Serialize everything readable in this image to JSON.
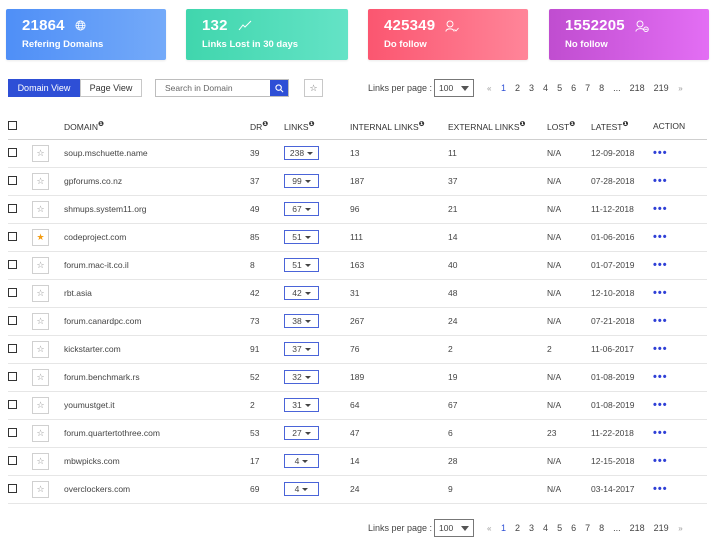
{
  "cards": [
    {
      "value": "21864",
      "label": "Refering Domains",
      "icon": "globe-icon"
    },
    {
      "value": "132",
      "label": "Links Lost in 30 days",
      "icon": "trend-line-icon"
    },
    {
      "value": "425349",
      "label": "Do follow",
      "icon": "user-check-icon"
    },
    {
      "value": "1552205",
      "label": "No follow",
      "icon": "user-block-icon"
    }
  ],
  "toolbar": {
    "domain_view": "Domain View",
    "page_view": "Page View",
    "search_placeholder": "Search in Domain",
    "favorite_icon": "☆"
  },
  "pagination": {
    "per_page_label": "Links per page :",
    "per_page_value": "100",
    "prev": "«",
    "next": "»",
    "pages": [
      "1",
      "2",
      "3",
      "4",
      "5",
      "6",
      "7",
      "8",
      "...",
      "218",
      "219"
    ],
    "active_page": "1"
  },
  "table": {
    "columns": {
      "domain": "DOMAIN",
      "dr": "DR",
      "links": "LINKS",
      "internal": "INTERNAL LINKS",
      "external": "EXTERNAL LINKS",
      "lost": "LOST",
      "latest": "LATEST",
      "action": "ACTION"
    },
    "info_icon": "❶",
    "action_icon": "•••",
    "rows": [
      {
        "domain": "soup.mschuette.name",
        "dr": "39",
        "links": "238",
        "internal": "13",
        "external": "11",
        "lost": "N/A",
        "latest": "12-09-2018",
        "starred": false
      },
      {
        "domain": "gpforums.co.nz",
        "dr": "37",
        "links": "99",
        "internal": "187",
        "external": "37",
        "lost": "N/A",
        "latest": "07-28-2018",
        "starred": false
      },
      {
        "domain": "shmups.system11.org",
        "dr": "49",
        "links": "67",
        "internal": "96",
        "external": "21",
        "lost": "N/A",
        "latest": "11-12-2018",
        "starred": false
      },
      {
        "domain": "codeproject.com",
        "dr": "85",
        "links": "51",
        "internal": "111",
        "external": "14",
        "lost": "N/A",
        "latest": "01-06-2016",
        "starred": true
      },
      {
        "domain": "forum.mac-it.co.il",
        "dr": "8",
        "links": "51",
        "internal": "163",
        "external": "40",
        "lost": "N/A",
        "latest": "01-07-2019",
        "starred": false
      },
      {
        "domain": "rbt.asia",
        "dr": "42",
        "links": "42",
        "internal": "31",
        "external": "48",
        "lost": "N/A",
        "latest": "12-10-2018",
        "starred": false
      },
      {
        "domain": "forum.canardpc.com",
        "dr": "73",
        "links": "38",
        "internal": "267",
        "external": "24",
        "lost": "N/A",
        "latest": "07-21-2018",
        "starred": false
      },
      {
        "domain": "kickstarter.com",
        "dr": "91",
        "links": "37",
        "internal": "76",
        "external": "2",
        "lost": "2",
        "latest": "11-06-2017",
        "starred": false
      },
      {
        "domain": "forum.benchmark.rs",
        "dr": "52",
        "links": "32",
        "internal": "189",
        "external": "19",
        "lost": "N/A",
        "latest": "01-08-2019",
        "starred": false
      },
      {
        "domain": "youmustget.it",
        "dr": "2",
        "links": "31",
        "internal": "64",
        "external": "67",
        "lost": "N/A",
        "latest": "01-08-2019",
        "starred": false
      },
      {
        "domain": "forum.quartertothree.com",
        "dr": "53",
        "links": "27",
        "internal": "47",
        "external": "6",
        "lost": "23",
        "latest": "11-22-2018",
        "starred": false
      },
      {
        "domain": "mbwpicks.com",
        "dr": "17",
        "links": "4",
        "internal": "14",
        "external": "28",
        "lost": "N/A",
        "latest": "12-15-2018",
        "starred": false
      },
      {
        "domain": "overclockers.com",
        "dr": "69",
        "links": "4",
        "internal": "24",
        "external": "9",
        "lost": "N/A",
        "latest": "03-14-2017",
        "starred": false
      }
    ]
  },
  "colors": {
    "primary": "#2e4fd6",
    "card_blue": "#4f8ff7",
    "card_green": "#40d6ad",
    "card_red": "#fb5670",
    "card_purple": "#c04dd0",
    "star_active": "#f39c12"
  }
}
